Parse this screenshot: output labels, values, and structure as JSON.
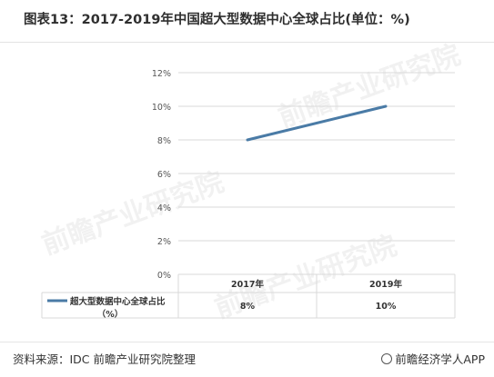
{
  "title": "图表13：2017-2019年中国超大型数据中心全球占比(单位：%)",
  "source": "资料来源：IDC 前瞻产业研究院整理",
  "brand": "前瞻经济学人APP",
  "watermark_text": "前瞻产业研究院",
  "chart_data": {
    "type": "line",
    "title": "图表13：2017-2019年中国超大型数据中心全球占比(单位：%)",
    "categories": [
      "2017年",
      "2019年"
    ],
    "series": [
      {
        "name": "超大型数据中心全球占比（%）",
        "values": [
          8,
          10
        ],
        "labels": [
          "8%",
          "10%"
        ],
        "color": "#4a7ba6"
      }
    ],
    "yticks": [
      "0%",
      "2%",
      "4%",
      "6%",
      "8%",
      "10%",
      "12%"
    ],
    "ylim": [
      0,
      12
    ],
    "grid": true,
    "legend": "data-table"
  }
}
